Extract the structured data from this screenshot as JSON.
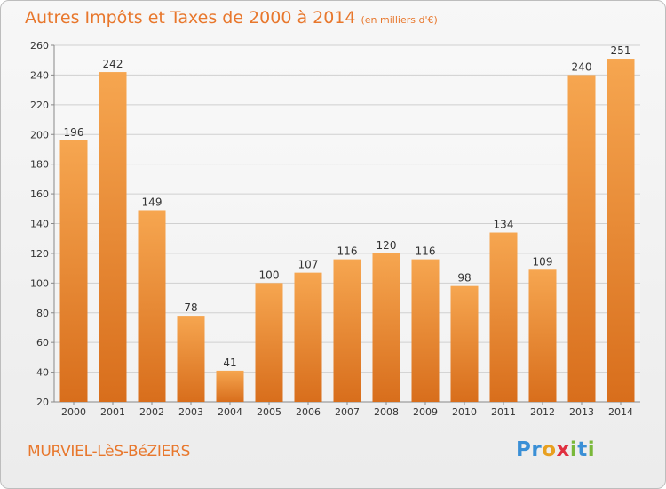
{
  "title": {
    "main": "Autres Impôts et Taxes de 2000 à 2014",
    "unit": "(en milliers d'€)"
  },
  "commune": "MURVIEL-LèS-BéZIERS",
  "logo": {
    "letters": [
      {
        "char": "P",
        "color": "#3a8fd6"
      },
      {
        "char": "r",
        "color": "#3a8fd6"
      },
      {
        "char": "o",
        "color": "#e8a020"
      },
      {
        "char": "x",
        "color": "#e03040"
      },
      {
        "char": "i",
        "color": "#7ab83a"
      },
      {
        "char": "t",
        "color": "#3a8fd6"
      },
      {
        "char": "i",
        "color": "#7ab83a"
      }
    ]
  },
  "colors": {
    "accent": "#e8772c",
    "bar_light": "#f6a650",
    "bar_dark": "#d86e1c"
  },
  "chart_data": {
    "type": "bar",
    "title": "Autres Impôts et Taxes de 2000 à 2014",
    "subtitle": "(en milliers d'€)",
    "categories": [
      "2000",
      "2001",
      "2002",
      "2003",
      "2004",
      "2005",
      "2006",
      "2007",
      "2008",
      "2009",
      "2010",
      "2011",
      "2012",
      "2013",
      "2014"
    ],
    "values": [
      196,
      242,
      149,
      78,
      41,
      100,
      107,
      116,
      120,
      116,
      98,
      134,
      109,
      240,
      251
    ],
    "ylim": [
      20,
      260
    ],
    "yticks": [
      20,
      40,
      60,
      80,
      100,
      120,
      140,
      160,
      180,
      200,
      220,
      240,
      260
    ],
    "grid": true,
    "legend": "none"
  }
}
